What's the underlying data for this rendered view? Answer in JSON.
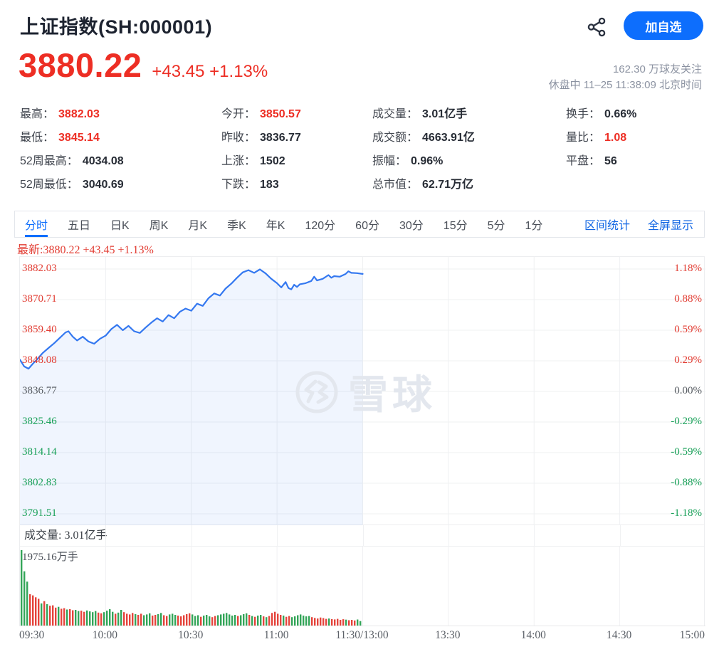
{
  "colors": {
    "up_red": "#ed2e24",
    "down_green": "#18a058",
    "line_blue": "#3478f0",
    "area_fill": "rgba(64,129,245,0.08)",
    "accent_blue": "#0d6efd",
    "vol_green": "#33a558",
    "vol_red": "#e5443c"
  },
  "header": {
    "title": "上证指数(SH:000001)",
    "share_icon": "share-icon",
    "add_button_label": "加自选"
  },
  "quote": {
    "price": "3880.22",
    "change": "+43.45",
    "change_pct": "+1.13%",
    "followers": "162.30 万球友关注",
    "status": "休盘中 11–25 11:38:09 北京时间"
  },
  "stats": {
    "rows": [
      [
        {
          "label": "最高",
          "value": "3882.03",
          "red": true
        },
        {
          "label": "今开",
          "value": "3850.57",
          "red": true
        },
        {
          "label": "成交量",
          "value": "3.01亿手",
          "red": false
        },
        {
          "label": "换手",
          "value": "0.66%",
          "red": false
        }
      ],
      [
        {
          "label": "最低",
          "value": "3845.14",
          "red": true
        },
        {
          "label": "昨收",
          "value": "3836.77",
          "red": false
        },
        {
          "label": "成交额",
          "value": "4663.91亿",
          "red": false
        },
        {
          "label": "量比",
          "value": "1.08",
          "red": true
        }
      ],
      [
        {
          "label": "52周最高",
          "value": "4034.08",
          "red": false
        },
        {
          "label": "上涨",
          "value": "1502",
          "red": false
        },
        {
          "label": "振幅",
          "value": "0.96%",
          "red": false
        },
        {
          "label": "平盘",
          "value": "56",
          "red": false
        }
      ],
      [
        {
          "label": "52周最低",
          "value": "3040.69",
          "red": false
        },
        {
          "label": "下跌",
          "value": "183",
          "red": false
        },
        {
          "label": "总市值",
          "value": "62.71万亿",
          "red": false
        },
        {
          "label": "",
          "value": "",
          "red": false
        }
      ]
    ]
  },
  "tabs": {
    "items": [
      "分时",
      "五日",
      "日K",
      "周K",
      "月K",
      "季K",
      "年K",
      "120分",
      "60分",
      "30分",
      "15分",
      "5分",
      "1分"
    ],
    "active_index": 0,
    "links": [
      "区间统计",
      "全屏显示"
    ]
  },
  "chart": {
    "latest_line": "最新:3880.22 +43.45 +1.13%",
    "volume_row_label": "成交量: 3.01亿手",
    "volume_max_label": "1975.16万手",
    "watermark_text": "雪球"
  },
  "chart_data": {
    "type": "line",
    "title": "上证指数 分时走势 2025-11-25 上午",
    "prev_close": 3836.77,
    "open": 3850.57,
    "high": 3882.03,
    "low": 3845.14,
    "last": 3880.22,
    "y_axis_price": [
      3882.03,
      3870.71,
      3859.4,
      3848.08,
      3836.77,
      3825.46,
      3814.14,
      3802.83,
      3791.51
    ],
    "y_axis_pct": [
      "1.18%",
      "0.88%",
      "0.59%",
      "0.29%",
      "0.00%",
      "-0.29%",
      "-0.59%",
      "-0.88%",
      "-1.18%"
    ],
    "x_labels": [
      "09:30",
      "10:00",
      "10:30",
      "11:00",
      "11:30/13:00",
      "13:30",
      "14:00",
      "14:30",
      "15:00"
    ],
    "x_total_minutes": 240,
    "x_traded_minutes": 120,
    "line_points": [
      [
        0,
        3848.5
      ],
      [
        1.5,
        3846.0
      ],
      [
        3,
        3845.14
      ],
      [
        4.5,
        3847.0
      ],
      [
        6,
        3848.6
      ],
      [
        8,
        3851.0
      ],
      [
        10,
        3852.8
      ],
      [
        12,
        3854.6
      ],
      [
        14,
        3856.6
      ],
      [
        16,
        3858.6
      ],
      [
        17,
        3859.0
      ],
      [
        18.5,
        3857.0
      ],
      [
        20,
        3855.6
      ],
      [
        22,
        3857.0
      ],
      [
        24,
        3855.2
      ],
      [
        26,
        3854.4
      ],
      [
        28,
        3856.2
      ],
      [
        30,
        3857.4
      ],
      [
        32,
        3859.8
      ],
      [
        34,
        3861.4
      ],
      [
        36,
        3859.4
      ],
      [
        38,
        3861.0
      ],
      [
        40,
        3859.0
      ],
      [
        42,
        3858.4
      ],
      [
        44,
        3860.4
      ],
      [
        46,
        3862.2
      ],
      [
        48,
        3863.8
      ],
      [
        50,
        3862.6
      ],
      [
        52,
        3865.0
      ],
      [
        54,
        3863.8
      ],
      [
        56,
        3866.2
      ],
      [
        58,
        3867.4
      ],
      [
        60,
        3866.6
      ],
      [
        62,
        3869.2
      ],
      [
        64,
        3868.4
      ],
      [
        66,
        3871.2
      ],
      [
        68,
        3873.0
      ],
      [
        70,
        3872.2
      ],
      [
        72,
        3874.8
      ],
      [
        74,
        3876.6
      ],
      [
        76,
        3878.8
      ],
      [
        78,
        3880.8
      ],
      [
        80,
        3881.6
      ],
      [
        82,
        3880.6
      ],
      [
        84,
        3881.9
      ],
      [
        86,
        3880.4
      ],
      [
        88,
        3878.4
      ],
      [
        90,
        3876.8
      ],
      [
        91.5,
        3875.2
      ],
      [
        93,
        3877.2
      ],
      [
        94,
        3875.0
      ],
      [
        95,
        3874.5
      ],
      [
        96,
        3876.2
      ],
      [
        97,
        3875.4
      ],
      [
        98,
        3876.4
      ],
      [
        100,
        3876.8
      ],
      [
        102,
        3877.6
      ],
      [
        103,
        3879.2
      ],
      [
        104,
        3877.8
      ],
      [
        106,
        3878.4
      ],
      [
        108,
        3879.8
      ],
      [
        109,
        3878.8
      ],
      [
        110,
        3879.4
      ],
      [
        112,
        3879.2
      ],
      [
        114,
        3880.2
      ],
      [
        115,
        3881.2
      ],
      [
        116,
        3880.6
      ],
      [
        118,
        3880.5
      ],
      [
        120,
        3880.22
      ]
    ],
    "volume_unit": "万手",
    "volume_axis_max": 1975.16,
    "volume_total": "3.01亿手",
    "volume_bars": [
      [
        1975,
        "g"
      ],
      [
        1420,
        "g"
      ],
      [
        1150,
        "g"
      ],
      [
        820,
        "r"
      ],
      [
        790,
        "r"
      ],
      [
        740,
        "r"
      ],
      [
        700,
        "r"
      ],
      [
        580,
        "g"
      ],
      [
        640,
        "r"
      ],
      [
        560,
        "g"
      ],
      [
        520,
        "r"
      ],
      [
        530,
        "r"
      ],
      [
        470,
        "r"
      ],
      [
        490,
        "g"
      ],
      [
        440,
        "r"
      ],
      [
        455,
        "r"
      ],
      [
        420,
        "g"
      ],
      [
        430,
        "r"
      ],
      [
        400,
        "r"
      ],
      [
        410,
        "g"
      ],
      [
        380,
        "g"
      ],
      [
        390,
        "r"
      ],
      [
        360,
        "r"
      ],
      [
        395,
        "g"
      ],
      [
        370,
        "g"
      ],
      [
        350,
        "g"
      ],
      [
        380,
        "g"
      ],
      [
        340,
        "r"
      ],
      [
        320,
        "r"
      ],
      [
        350,
        "g"
      ],
      [
        390,
        "g"
      ],
      [
        430,
        "g"
      ],
      [
        360,
        "g"
      ],
      [
        310,
        "r"
      ],
      [
        340,
        "g"
      ],
      [
        410,
        "g"
      ],
      [
        350,
        "r"
      ],
      [
        310,
        "r"
      ],
      [
        290,
        "r"
      ],
      [
        330,
        "r"
      ],
      [
        300,
        "g"
      ],
      [
        280,
        "r"
      ],
      [
        310,
        "r"
      ],
      [
        270,
        "g"
      ],
      [
        290,
        "g"
      ],
      [
        320,
        "g"
      ],
      [
        260,
        "r"
      ],
      [
        280,
        "r"
      ],
      [
        300,
        "g"
      ],
      [
        330,
        "g"
      ],
      [
        270,
        "r"
      ],
      [
        250,
        "r"
      ],
      [
        290,
        "g"
      ],
      [
        310,
        "g"
      ],
      [
        280,
        "g"
      ],
      [
        260,
        "r"
      ],
      [
        240,
        "r"
      ],
      [
        270,
        "r"
      ],
      [
        300,
        "r"
      ],
      [
        320,
        "r"
      ],
      [
        290,
        "g"
      ],
      [
        250,
        "g"
      ],
      [
        270,
        "g"
      ],
      [
        230,
        "r"
      ],
      [
        260,
        "g"
      ],
      [
        280,
        "g"
      ],
      [
        240,
        "g"
      ],
      [
        220,
        "r"
      ],
      [
        250,
        "r"
      ],
      [
        270,
        "g"
      ],
      [
        290,
        "g"
      ],
      [
        310,
        "g"
      ],
      [
        330,
        "g"
      ],
      [
        290,
        "g"
      ],
      [
        260,
        "g"
      ],
      [
        280,
        "g"
      ],
      [
        250,
        "r"
      ],
      [
        270,
        "g"
      ],
      [
        300,
        "g"
      ],
      [
        320,
        "g"
      ],
      [
        280,
        "r"
      ],
      [
        250,
        "g"
      ],
      [
        230,
        "r"
      ],
      [
        260,
        "g"
      ],
      [
        280,
        "g"
      ],
      [
        240,
        "r"
      ],
      [
        220,
        "g"
      ],
      [
        250,
        "r"
      ],
      [
        330,
        "r"
      ],
      [
        360,
        "r"
      ],
      [
        310,
        "r"
      ],
      [
        280,
        "r"
      ],
      [
        260,
        "g"
      ],
      [
        230,
        "r"
      ],
      [
        250,
        "r"
      ],
      [
        220,
        "g"
      ],
      [
        240,
        "g"
      ],
      [
        270,
        "g"
      ],
      [
        290,
        "g"
      ],
      [
        260,
        "g"
      ],
      [
        240,
        "g"
      ],
      [
        250,
        "g"
      ],
      [
        220,
        "r"
      ],
      [
        200,
        "r"
      ],
      [
        185,
        "r"
      ],
      [
        210,
        "r"
      ],
      [
        195,
        "r"
      ],
      [
        175,
        "r"
      ],
      [
        185,
        "g"
      ],
      [
        170,
        "r"
      ],
      [
        160,
        "r"
      ],
      [
        175,
        "r"
      ],
      [
        150,
        "r"
      ],
      [
        165,
        "r"
      ],
      [
        155,
        "g"
      ],
      [
        140,
        "r"
      ],
      [
        150,
        "r"
      ],
      [
        132,
        "r"
      ],
      [
        158,
        "g"
      ],
      [
        118,
        "g"
      ]
    ]
  }
}
